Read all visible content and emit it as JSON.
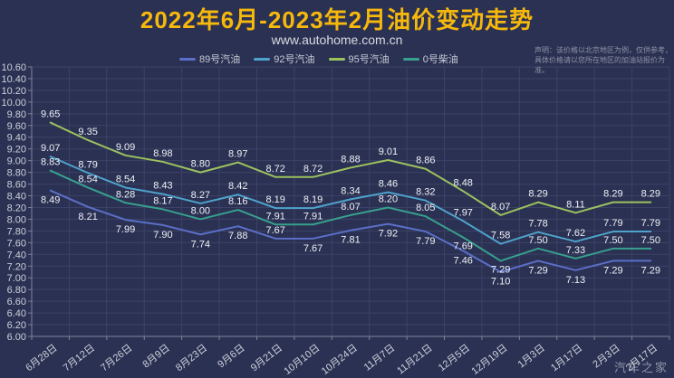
{
  "header": {
    "title": "2022年6月-2023年2月油价变动走势",
    "subtitle": "www.autohome.com.cn",
    "disclaimer_line1": "声明：该价格以北京地区为例，仅供参考，",
    "disclaimer_line2": "具体价格请以您所在地区的加油站报价为准。"
  },
  "watermark": "汽车之家",
  "colors": {
    "background": "#2b3152",
    "grid": "#3d4366",
    "axis": "#7e849c",
    "tick_label": "#ccd0dc",
    "data_label": "#eef1f7",
    "title": "#f6b80c"
  },
  "chart_data": {
    "type": "line",
    "title": "2022年6月-2023年2月油价变动走势",
    "subtitle": "www.autohome.com.cn",
    "xlabel": "",
    "ylabel": "",
    "ylim": [
      6.0,
      10.6
    ],
    "ytick_step": 0.2,
    "grid": true,
    "legend_position": "top",
    "categories": [
      "6月28日",
      "7月12日",
      "7月26日",
      "8月9日",
      "8月23日",
      "9月6日",
      "9月21日",
      "10月10日",
      "10月24日",
      "11月7日",
      "11月21日",
      "12月5日",
      "12月19日",
      "1月3日",
      "1月17日",
      "2月3日",
      "2月17日"
    ],
    "series": [
      {
        "name": "89号汽油",
        "color": "#5b6fc8",
        "values": [
          8.49,
          8.21,
          7.99,
          7.9,
          7.74,
          7.88,
          7.67,
          7.67,
          7.81,
          7.92,
          7.79,
          7.46,
          7.1,
          7.29,
          7.13,
          7.29,
          7.29
        ]
      },
      {
        "name": "92号汽油",
        "color": "#4ea2cb",
        "values": [
          9.07,
          8.79,
          8.54,
          8.43,
          8.27,
          8.42,
          8.19,
          8.19,
          8.34,
          8.46,
          8.32,
          7.97,
          7.58,
          7.78,
          7.62,
          7.79,
          7.79
        ]
      },
      {
        "name": "95号汽油",
        "color": "#9cc25e",
        "values": [
          9.65,
          9.35,
          9.09,
          8.98,
          8.8,
          8.97,
          8.72,
          8.72,
          8.88,
          9.01,
          8.86,
          8.48,
          8.07,
          8.29,
          8.11,
          8.29,
          8.29
        ]
      },
      {
        "name": "0号柴油",
        "color": "#37a08e",
        "values": [
          8.83,
          8.54,
          8.28,
          8.17,
          8.0,
          8.16,
          7.91,
          7.91,
          8.07,
          8.2,
          8.05,
          7.69,
          7.29,
          7.5,
          7.33,
          7.5,
          7.5
        ]
      }
    ]
  }
}
